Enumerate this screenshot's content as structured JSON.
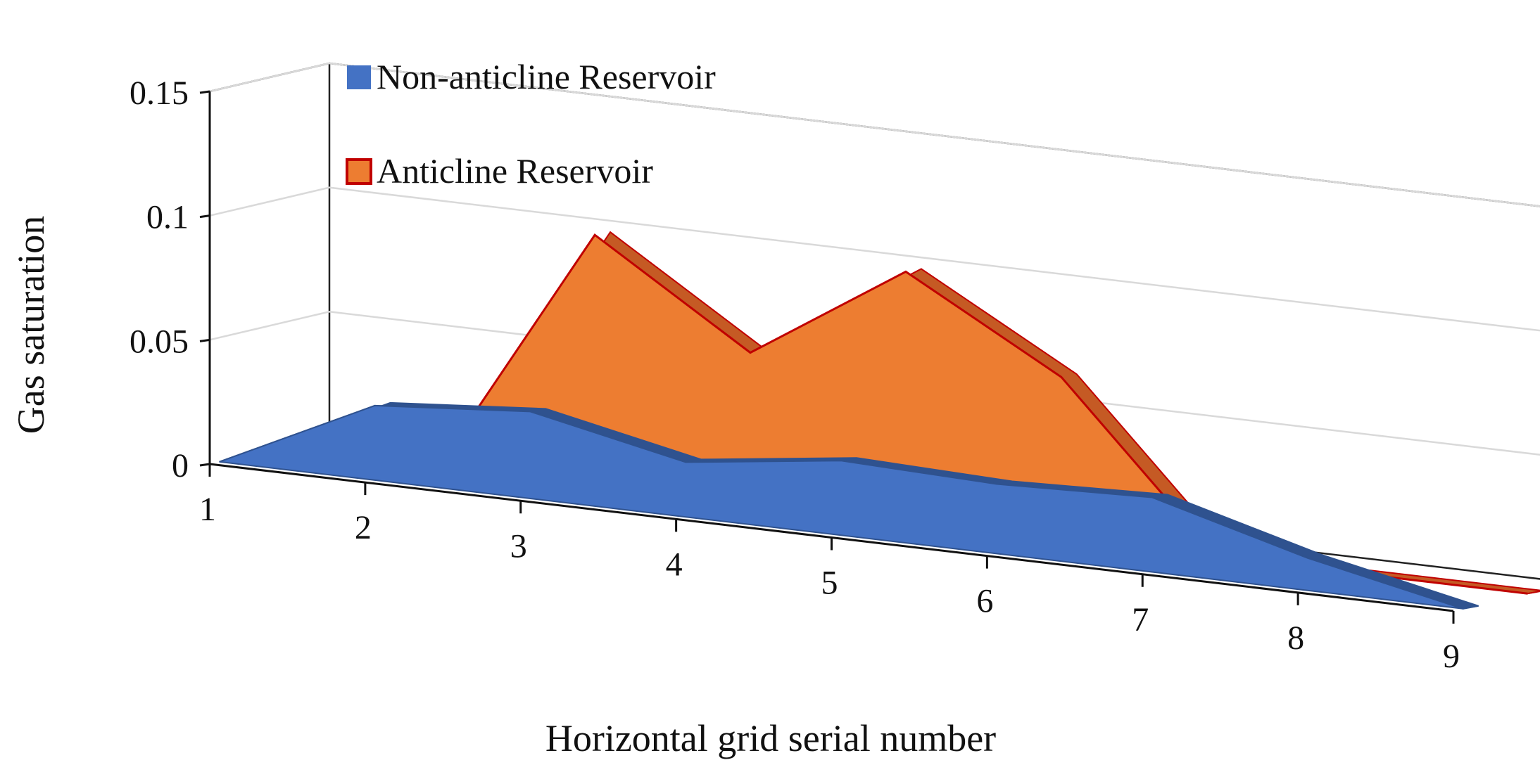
{
  "chart_data": {
    "type": "area",
    "title": "",
    "xlabel": "Horizontal grid serial number",
    "ylabel": "Gas saturation",
    "categories": [
      "1",
      "2",
      "3",
      "4",
      "5",
      "6",
      "7",
      "8",
      "9"
    ],
    "ylim": [
      0,
      0.15
    ],
    "yticks": [
      "0",
      "0.05",
      "0.1",
      "0.15"
    ],
    "grid": true,
    "legend_position": "top-left",
    "series": [
      {
        "name": "Non-anticline Reservoir",
        "values": [
          0,
          0.03,
          0.035,
          0.022,
          0.03,
          0.028,
          0.03,
          0.013,
          0
        ],
        "color": "#4472C4",
        "edge_color": "#2F528F"
      },
      {
        "name": "Anticline Reservoir",
        "values": [
          0,
          0,
          0.1,
          0.06,
          0.1,
          0.065,
          0,
          0,
          0
        ],
        "color": "#ED7D31",
        "edge_color": "#C00000",
        "side_color": "#C55A24"
      }
    ]
  }
}
